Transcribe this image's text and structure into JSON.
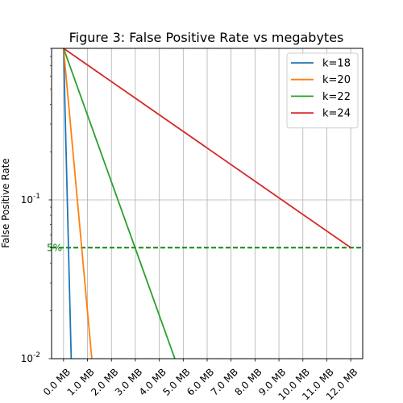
{
  "chart_data": {
    "type": "line",
    "title": "Figure 3: False Positive Rate vs megabytes",
    "xlabel": "",
    "ylabel": "False Positive Rate",
    "x_unit_suffix": " MB",
    "xlim": [
      -0.5,
      12.5
    ],
    "ylim": [
      0.01,
      0.9
    ],
    "y_scale": "log",
    "grid": true,
    "legend_placement": "top-right",
    "x_ticks": [
      "0.0 MB",
      "1.0 MB",
      "2.0 MB",
      "3.0 MB",
      "4.0 MB",
      "5.0 MB",
      "6.0 MB",
      "7.0 MB",
      "8.0 MB",
      "9.0 MB",
      "10.0 MB",
      "11.0 MB",
      "12.0 MB"
    ],
    "y_ticks": [
      {
        "value": 0.1,
        "label": "10^-1"
      },
      {
        "value": 0.01,
        "label": "10^-2"
      }
    ],
    "series": [
      {
        "name": "k=18",
        "color": "#1f77b4",
        "x": [
          0.0,
          0.32
        ],
        "y": [
          0.9,
          0.01
        ]
      },
      {
        "name": "k=20",
        "color": "#ff7f0e",
        "x": [
          0.0,
          1.18
        ],
        "y": [
          0.9,
          0.01
        ]
      },
      {
        "name": "k=22",
        "color": "#2ca02c",
        "x": [
          0.0,
          4.65
        ],
        "y": [
          0.9,
          0.01
        ]
      },
      {
        "name": "k=24",
        "color": "#d62728",
        "x": [
          0.0,
          12.0
        ],
        "y": [
          0.9,
          0.05
        ]
      }
    ],
    "reference_line": {
      "value": 0.05,
      "label": "5%",
      "color": "#008000"
    }
  }
}
